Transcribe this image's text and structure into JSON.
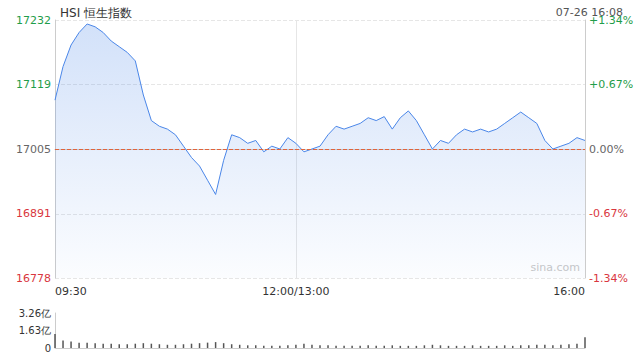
{
  "chart_data": [
    {
      "type": "line",
      "title": "HSI 恒生指数",
      "subtitle": "07-26 16:08",
      "annotations": [
        "sina.com"
      ],
      "categories": [
        "09:30",
        null,
        null,
        null,
        null,
        null,
        null,
        null,
        null,
        null,
        null,
        null,
        null,
        null,
        null,
        null,
        null,
        null,
        null,
        null,
        null,
        null,
        null,
        null,
        null,
        null,
        null,
        null,
        null,
        null,
        "12:00/13:00",
        null,
        null,
        null,
        null,
        null,
        null,
        null,
        null,
        null,
        null,
        null,
        null,
        null,
        null,
        null,
        null,
        null,
        null,
        null,
        null,
        null,
        null,
        null,
        null,
        null,
        null,
        null,
        null,
        null,
        null,
        null,
        null,
        null,
        null,
        null,
        "16:00"
      ],
      "values": [
        17091,
        17150,
        17188,
        17210,
        17225,
        17220,
        17210,
        17195,
        17185,
        17175,
        17160,
        17100,
        17055,
        17045,
        17040,
        17030,
        17010,
        16990,
        16975,
        16950,
        16925,
        16985,
        17030,
        17025,
        17015,
        17020,
        17000,
        17010,
        17005,
        17025,
        17015,
        17000,
        17005,
        17010,
        17030,
        17045,
        17040,
        17045,
        17050,
        17060,
        17055,
        17062,
        17040,
        17060,
        17072,
        17055,
        17030,
        17005,
        17020,
        17015,
        17030,
        17040,
        17035,
        17040,
        17035,
        17040,
        17050,
        17060,
        17070,
        17060,
        17050,
        17020,
        17005,
        17010,
        17015,
        17025,
        17020
      ],
      "color": "#4a86e8",
      "ylim": [
        16778,
        17232
      ],
      "yticks": [
        16778,
        16891,
        17005,
        17119,
        17232
      ],
      "y2lim": [
        -1.34,
        1.34
      ],
      "y2ticks": [
        {
          "value": -1.34,
          "label": "-1.34%"
        },
        {
          "value": -0.67,
          "label": "-0.67%"
        },
        {
          "value": 0,
          "label": "0.00%"
        },
        {
          "value": 0.67,
          "label": "+0.67%"
        },
        {
          "value": 1.34,
          "label": "+1.34%"
        }
      ],
      "grid": true
    },
    {
      "type": "bar",
      "values": [
        1.3,
        0.7,
        0.6,
        0.5,
        0.5,
        0.45,
        0.4,
        0.4,
        0.35,
        0.35,
        0.4,
        0.45,
        0.4,
        0.35,
        0.3,
        0.3,
        0.35,
        0.4,
        0.45,
        0.5,
        0.55,
        0.45,
        0.35,
        0.3,
        0.25,
        0.25,
        0.2,
        0.2,
        0.2,
        0.25,
        0.3,
        0.4,
        0.3,
        0.25,
        0.25,
        0.2,
        0.2,
        0.2,
        0.2,
        0.25,
        0.2,
        0.2,
        0.25,
        0.2,
        0.2,
        0.2,
        0.25,
        0.3,
        0.25,
        0.2,
        0.2,
        0.2,
        0.25,
        0.2,
        0.2,
        0.2,
        0.25,
        0.2,
        0.25,
        0.25,
        0.3,
        0.3,
        0.25,
        0.3,
        0.35,
        0.4,
        1.0
      ],
      "color": "#555555",
      "ylim": [
        0,
        3.26
      ],
      "yticks": [
        0,
        {
          "value": 1.63,
          "label": "1.63亿"
        },
        {
          "value": 3.26,
          "label": "3.26亿"
        }
      ],
      "tick_labels": "y"
    }
  ]
}
